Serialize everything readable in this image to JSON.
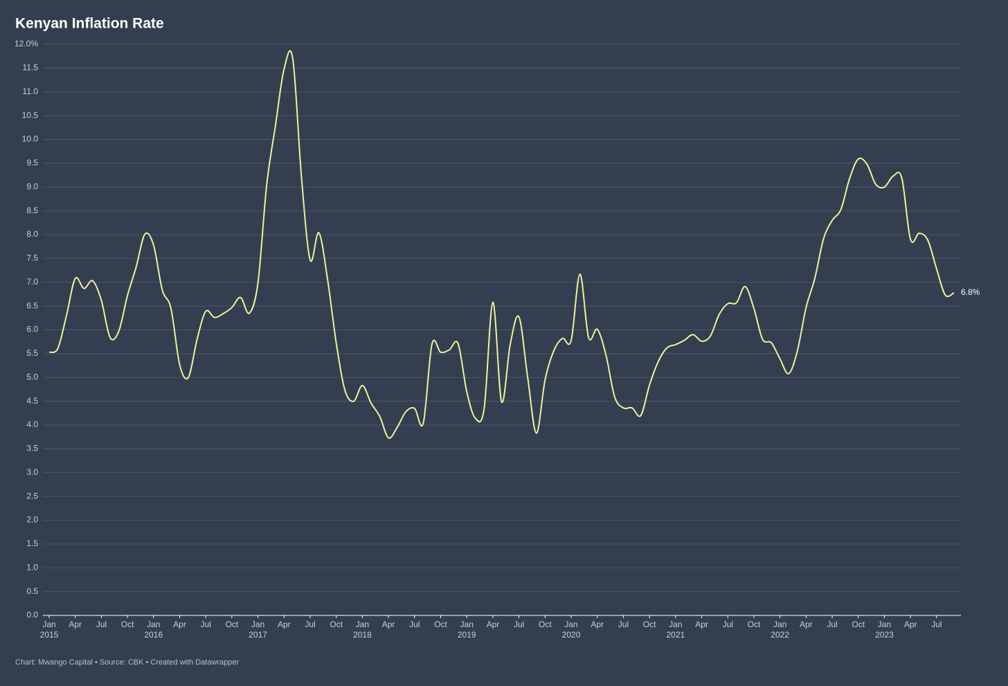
{
  "chart_data": {
    "type": "line",
    "title": "Kenyan Inflation Rate",
    "footer": "Chart: Mwango Capital • Source: CBK • Created with Datawrapper",
    "x": [
      "2015-01",
      "2015-02",
      "2015-03",
      "2015-04",
      "2015-05",
      "2015-06",
      "2015-07",
      "2015-08",
      "2015-09",
      "2015-10",
      "2015-11",
      "2015-12",
      "2016-01",
      "2016-02",
      "2016-03",
      "2016-04",
      "2016-05",
      "2016-06",
      "2016-07",
      "2016-08",
      "2016-09",
      "2016-10",
      "2016-11",
      "2016-12",
      "2017-01",
      "2017-02",
      "2017-03",
      "2017-04",
      "2017-05",
      "2017-06",
      "2017-07",
      "2017-08",
      "2017-09",
      "2017-10",
      "2017-11",
      "2017-12",
      "2018-01",
      "2018-02",
      "2018-03",
      "2018-04",
      "2018-05",
      "2018-06",
      "2018-07",
      "2018-08",
      "2018-09",
      "2018-10",
      "2018-11",
      "2018-12",
      "2019-01",
      "2019-02",
      "2019-03",
      "2019-04",
      "2019-05",
      "2019-06",
      "2019-07",
      "2019-08",
      "2019-09",
      "2019-10",
      "2019-11",
      "2019-12",
      "2020-01",
      "2020-02",
      "2020-03",
      "2020-04",
      "2020-05",
      "2020-06",
      "2020-07",
      "2020-08",
      "2020-09",
      "2020-10",
      "2020-11",
      "2020-12",
      "2021-01",
      "2021-02",
      "2021-03",
      "2021-04",
      "2021-05",
      "2021-06",
      "2021-07",
      "2021-08",
      "2021-09",
      "2021-10",
      "2021-11",
      "2021-12",
      "2022-01",
      "2022-02",
      "2022-03",
      "2022-04",
      "2022-05",
      "2022-06",
      "2022-07",
      "2022-08",
      "2022-09",
      "2022-10",
      "2022-11",
      "2022-12",
      "2023-01",
      "2023-02",
      "2023-03",
      "2023-04",
      "2023-05",
      "2023-06",
      "2023-07",
      "2023-08",
      "2023-09"
    ],
    "series": [
      {
        "color": "#eef39a",
        "values": [
          5.53,
          5.61,
          6.31,
          7.08,
          6.87,
          7.03,
          6.62,
          5.84,
          5.97,
          6.72,
          7.32,
          8.01,
          7.78,
          6.84,
          6.45,
          5.27,
          5.0,
          5.8,
          6.39,
          6.26,
          6.34,
          6.47,
          6.68,
          6.35,
          6.99,
          9.04,
          10.28,
          11.48,
          11.7,
          9.21,
          7.47,
          8.04,
          7.06,
          5.72,
          4.73,
          4.5,
          4.83,
          4.46,
          4.18,
          3.73,
          3.95,
          4.28,
          4.35,
          4.04,
          5.7,
          5.53,
          5.58,
          5.71,
          4.7,
          4.14,
          4.35,
          6.58,
          4.49,
          5.7,
          6.27,
          5.0,
          3.83,
          4.95,
          5.56,
          5.82,
          5.78,
          7.17,
          5.84,
          6.01,
          5.47,
          4.59,
          4.36,
          4.36,
          4.2,
          4.84,
          5.33,
          5.62,
          5.69,
          5.78,
          5.9,
          5.76,
          5.87,
          6.32,
          6.55,
          6.57,
          6.91,
          6.45,
          5.8,
          5.73,
          5.39,
          5.08,
          5.56,
          6.47,
          7.08,
          7.91,
          8.3,
          8.53,
          9.18,
          9.59,
          9.48,
          9.06,
          9.0,
          9.23,
          9.19,
          7.9,
          8.03,
          7.88,
          7.28,
          6.73,
          6.78
        ],
        "value_labels": [
          null,
          null,
          null,
          null,
          null,
          null,
          null,
          null,
          null,
          null,
          null,
          null,
          null,
          null,
          null,
          null,
          null,
          null,
          null,
          null,
          null,
          null,
          null,
          null,
          null,
          null,
          null,
          null,
          null,
          null,
          null,
          null,
          null,
          null,
          null,
          null,
          null,
          null,
          null,
          null,
          null,
          null,
          null,
          null,
          null,
          null,
          null,
          null,
          null,
          null,
          null,
          null,
          null,
          null,
          null,
          null,
          null,
          null,
          null,
          null,
          null,
          null,
          null,
          null,
          null,
          null,
          null,
          null,
          null,
          null,
          null,
          null,
          null,
          null,
          null,
          null,
          null,
          null,
          null,
          null,
          null,
          null,
          null,
          null,
          null,
          null,
          null,
          null,
          null,
          null,
          null,
          null,
          null,
          null,
          null,
          null,
          null,
          null,
          null,
          null,
          null,
          null,
          null,
          null,
          "6.8%"
        ]
      }
    ],
    "ylim": [
      0,
      12
    ],
    "yticks": [
      {
        "value": 0,
        "label": "0.0"
      },
      0.5,
      {
        "value": 1,
        "label": "1.0"
      },
      1.5,
      {
        "value": 2,
        "label": "2.0"
      },
      2.5,
      {
        "value": 3,
        "label": "3.0"
      },
      3.5,
      {
        "value": 4,
        "label": "4.0"
      },
      4.5,
      {
        "value": 5,
        "label": "5.0"
      },
      5.5,
      {
        "value": 6,
        "label": "6.0"
      },
      6.5,
      {
        "value": 7,
        "label": "7.0"
      },
      7.5,
      {
        "value": 8,
        "label": "8.0"
      },
      8.5,
      {
        "value": 9,
        "label": "9.0"
      },
      9.5,
      {
        "value": 10,
        "label": "10.0"
      },
      10.5,
      {
        "value": 11,
        "label": "11.0"
      },
      11.5,
      {
        "value": 12,
        "label": "12.0%"
      }
    ],
    "xticks": [
      {
        "value": "2015-01",
        "label": [
          "Jan",
          "2015"
        ]
      },
      {
        "value": "2015-04",
        "label": [
          "Apr"
        ]
      },
      {
        "value": "2015-07",
        "label": [
          "Jul"
        ]
      },
      {
        "value": "2015-10",
        "label": [
          "Oct"
        ]
      },
      {
        "value": "2016-01",
        "label": [
          "Jan",
          "2016"
        ]
      },
      {
        "value": "2016-04",
        "label": [
          "Apr"
        ]
      },
      {
        "value": "2016-07",
        "label": [
          "Jul"
        ]
      },
      {
        "value": "2016-10",
        "label": [
          "Oct"
        ]
      },
      {
        "value": "2017-01",
        "label": [
          "Jan",
          "2017"
        ]
      },
      {
        "value": "2017-04",
        "label": [
          "Apr"
        ]
      },
      {
        "value": "2017-07",
        "label": [
          "Jul"
        ]
      },
      {
        "value": "2017-10",
        "label": [
          "Oct"
        ]
      },
      {
        "value": "2018-01",
        "label": [
          "Jan",
          "2018"
        ]
      },
      {
        "value": "2018-04",
        "label": [
          "Apr"
        ]
      },
      {
        "value": "2018-07",
        "label": [
          "Jul"
        ]
      },
      {
        "value": "2018-10",
        "label": [
          "Oct"
        ]
      },
      {
        "value": "2019-01",
        "label": [
          "Jan",
          "2019"
        ]
      },
      {
        "value": "2019-04",
        "label": [
          "Apr"
        ]
      },
      {
        "value": "2019-07",
        "label": [
          "Jul"
        ]
      },
      {
        "value": "2019-10",
        "label": [
          "Oct"
        ]
      },
      {
        "value": "2020-01",
        "label": [
          "Jan",
          "2020"
        ]
      },
      {
        "value": "2020-04",
        "label": [
          "Apr"
        ]
      },
      {
        "value": "2020-07",
        "label": [
          "Jul"
        ]
      },
      {
        "value": "2020-10",
        "label": [
          "Oct"
        ]
      },
      {
        "value": "2021-01",
        "label": [
          "Jan",
          "2021"
        ]
      },
      {
        "value": "2021-04",
        "label": [
          "Apr"
        ]
      },
      {
        "value": "2021-07",
        "label": [
          "Jul"
        ]
      },
      {
        "value": "2021-10",
        "label": [
          "Oct"
        ]
      },
      {
        "value": "2022-01",
        "label": [
          "Jan",
          "2022"
        ]
      },
      {
        "value": "2022-04",
        "label": [
          "Apr"
        ]
      },
      {
        "value": "2022-07",
        "label": [
          "Jul"
        ]
      },
      {
        "value": "2022-10",
        "label": [
          "Oct"
        ]
      },
      {
        "value": "2023-01",
        "label": [
          "Jan",
          "2023"
        ]
      },
      {
        "value": "2023-04",
        "label": [
          "Apr"
        ]
      },
      {
        "value": "2023-07",
        "label": [
          "Jul"
        ]
      }
    ],
    "grid": true
  }
}
